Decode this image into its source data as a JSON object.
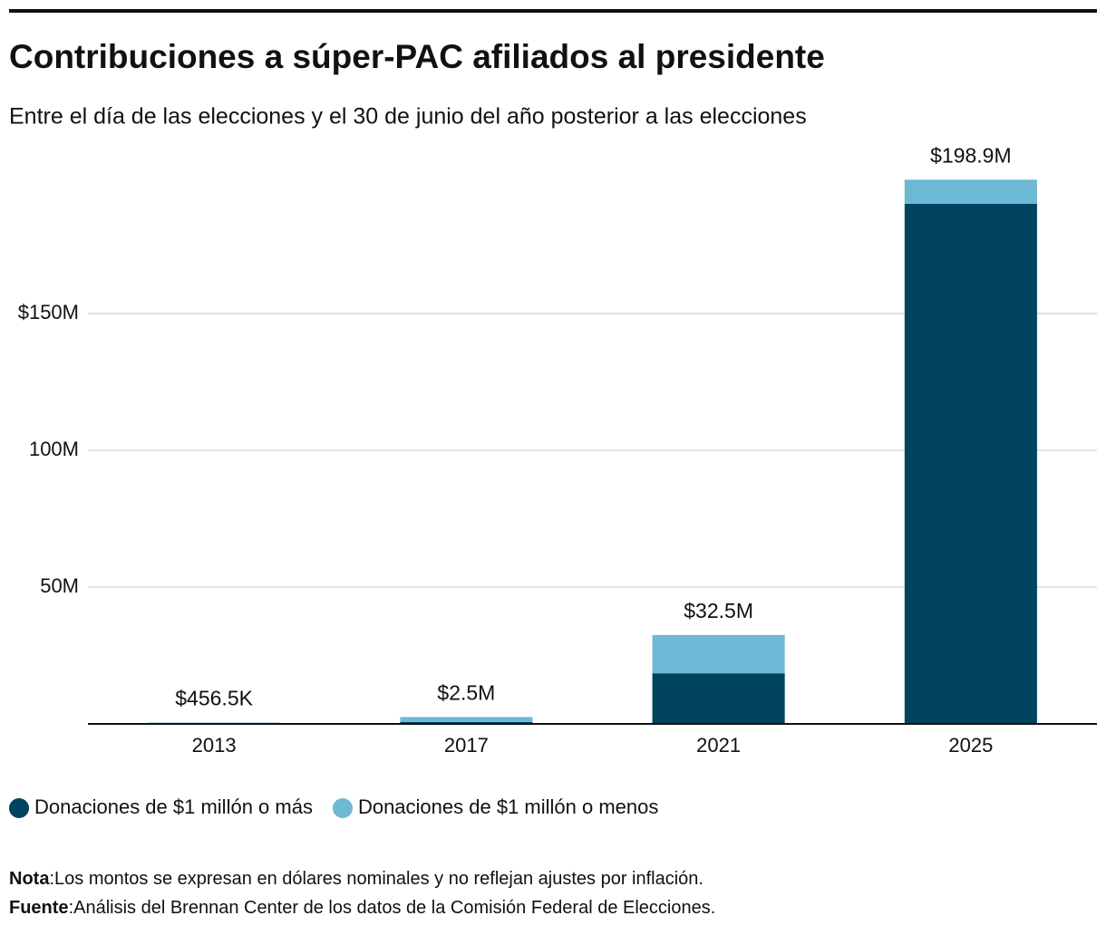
{
  "chart_data": {
    "type": "stacked_bar",
    "title": "Contribuciones a súper-PAC afiliados al presidente",
    "subtitle": "Entre el día de las elecciones y el 30 de junio del año posterior a las elecciones",
    "categories": [
      "2013",
      "2017",
      "2021",
      "2025"
    ],
    "series": [
      {
        "name": "Donaciones de $1 millón o más",
        "color": "#00435e",
        "values": [
          0,
          0.7,
          18.5,
          190.1
        ]
      },
      {
        "name": "Donaciones de $1 millón o menos",
        "color": "#6cb8d5",
        "values": [
          0.4565,
          1.8,
          14.0,
          8.8
        ]
      }
    ],
    "totals": {
      "values": [
        0.4565,
        2.5,
        32.5,
        198.9
      ],
      "value_labels": [
        "$456.5K",
        "$2.5M",
        "$32.5M",
        "$198.9M"
      ]
    },
    "ylim": [
      0,
      200
    ],
    "yticks": [
      {
        "value": 50,
        "label": "50M"
      },
      {
        "value": 100,
        "label": "100M"
      },
      {
        "value": 150,
        "label": "$150M"
      }
    ],
    "grid": true,
    "note": {
      "label": "Nota",
      "text": ":Los montos se expresan en dólares nominales y no reflejan ajustes por inflación."
    },
    "source": {
      "label": "Fuente",
      "text": ":Análisis del Brennan Center de los datos de la Comisión Federal de Elecciones."
    }
  }
}
